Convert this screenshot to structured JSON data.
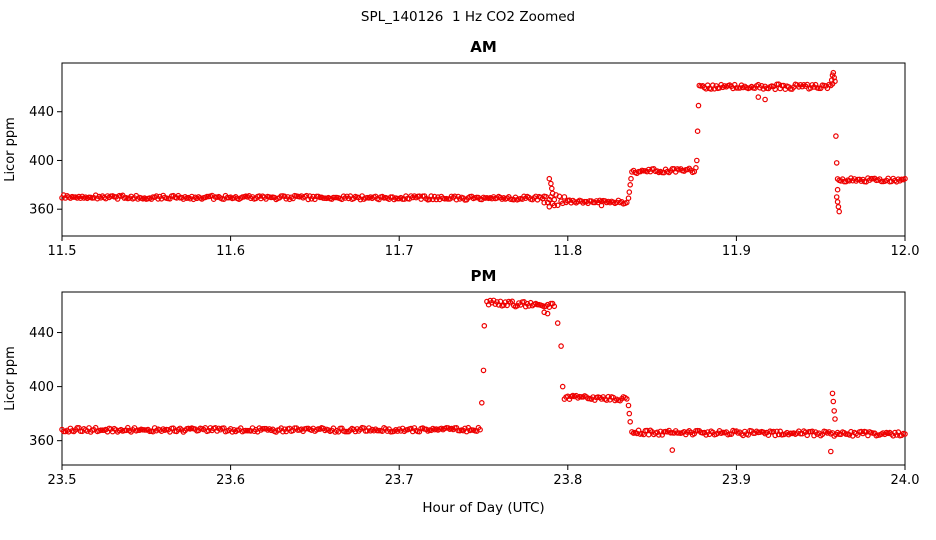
{
  "figure": {
    "title": "SPL_140126  1 Hz CO2 Zoomed",
    "xlabel": "Hour of Day (UTC)",
    "background": "#ffffff",
    "axis_color": "#000000"
  },
  "chart_data": [
    {
      "type": "scatter",
      "title": "AM",
      "xlabel": "",
      "ylabel": "Licor ppm",
      "xlim": [
        11.5,
        12.0
      ],
      "ylim": [
        338,
        480
      ],
      "xticks": [
        11.5,
        11.6,
        11.7,
        11.8,
        11.9,
        12.0
      ],
      "yticks": [
        360,
        400,
        440
      ],
      "grid": false,
      "legend": "none",
      "marker": "open-circle",
      "color": "#ee0000",
      "sample_step_hours": 0.001,
      "segments": [
        {
          "x0": 11.5,
          "x1": 11.786,
          "y0": 370,
          "y1": 369,
          "jitter": 1.6
        },
        {
          "x0": 11.786,
          "x1": 11.8,
          "y0": 369,
          "y1": 366,
          "jitter": 4.5
        },
        {
          "x0": 11.8,
          "x1": 11.835,
          "y0": 366,
          "y1": 366,
          "jitter": 1.6
        },
        {
          "x0": 11.838,
          "x1": 11.875,
          "y0": 391,
          "y1": 392,
          "jitter": 1.8
        },
        {
          "x0": 11.878,
          "x1": 11.957,
          "y0": 460,
          "y1": 461,
          "jitter": 2.2
        },
        {
          "x0": 11.96,
          "x1": 12.0,
          "y0": 384,
          "y1": 384,
          "jitter": 1.6
        }
      ],
      "extra_points": [
        [
          11.789,
          385
        ],
        [
          11.79,
          381
        ],
        [
          11.7905,
          377
        ],
        [
          11.791,
          373
        ],
        [
          11.789,
          362
        ],
        [
          11.792,
          363
        ],
        [
          11.82,
          363
        ],
        [
          11.836,
          369
        ],
        [
          11.8365,
          374
        ],
        [
          11.837,
          380
        ],
        [
          11.8375,
          385
        ],
        [
          11.876,
          394
        ],
        [
          11.8765,
          400
        ],
        [
          11.877,
          424
        ],
        [
          11.8775,
          445
        ],
        [
          11.913,
          452
        ],
        [
          11.917,
          450
        ],
        [
          11.9565,
          466
        ],
        [
          11.957,
          470
        ],
        [
          11.9575,
          472
        ],
        [
          11.958,
          468
        ],
        [
          11.9585,
          465
        ],
        [
          11.959,
          420
        ],
        [
          11.9595,
          398
        ],
        [
          11.96,
          376
        ],
        [
          11.9595,
          370
        ],
        [
          11.96,
          366
        ],
        [
          11.9605,
          362
        ],
        [
          11.961,
          358
        ]
      ]
    },
    {
      "type": "scatter",
      "title": "PM",
      "xlabel": "Hour of Day (UTC)",
      "ylabel": "Licor ppm",
      "xlim": [
        23.5,
        24.0
      ],
      "ylim": [
        342,
        470
      ],
      "xticks": [
        23.5,
        23.6,
        23.7,
        23.8,
        23.9,
        24.0
      ],
      "yticks": [
        360,
        400,
        440
      ],
      "grid": false,
      "legend": "none",
      "marker": "open-circle",
      "color": "#ee0000",
      "sample_step_hours": 0.001,
      "segments": [
        {
          "x0": 23.5,
          "x1": 23.748,
          "y0": 368,
          "y1": 368,
          "jitter": 1.6
        },
        {
          "x0": 23.752,
          "x1": 23.792,
          "y0": 462,
          "y1": 460,
          "jitter": 2.0
        },
        {
          "x0": 23.798,
          "x1": 23.835,
          "y0": 392,
          "y1": 391,
          "jitter": 1.6
        },
        {
          "x0": 23.838,
          "x1": 24.0,
          "y0": 366,
          "y1": 365,
          "jitter": 1.8
        }
      ],
      "extra_points": [
        [
          23.749,
          388
        ],
        [
          23.75,
          412
        ],
        [
          23.7505,
          445
        ],
        [
          23.786,
          455
        ],
        [
          23.788,
          454
        ],
        [
          23.794,
          447
        ],
        [
          23.796,
          430
        ],
        [
          23.797,
          400
        ],
        [
          23.836,
          386
        ],
        [
          23.8365,
          380
        ],
        [
          23.837,
          374
        ],
        [
          23.862,
          353
        ],
        [
          23.957,
          395
        ],
        [
          23.9575,
          389
        ],
        [
          23.958,
          382
        ],
        [
          23.9585,
          376
        ],
        [
          23.956,
          352
        ]
      ]
    }
  ]
}
